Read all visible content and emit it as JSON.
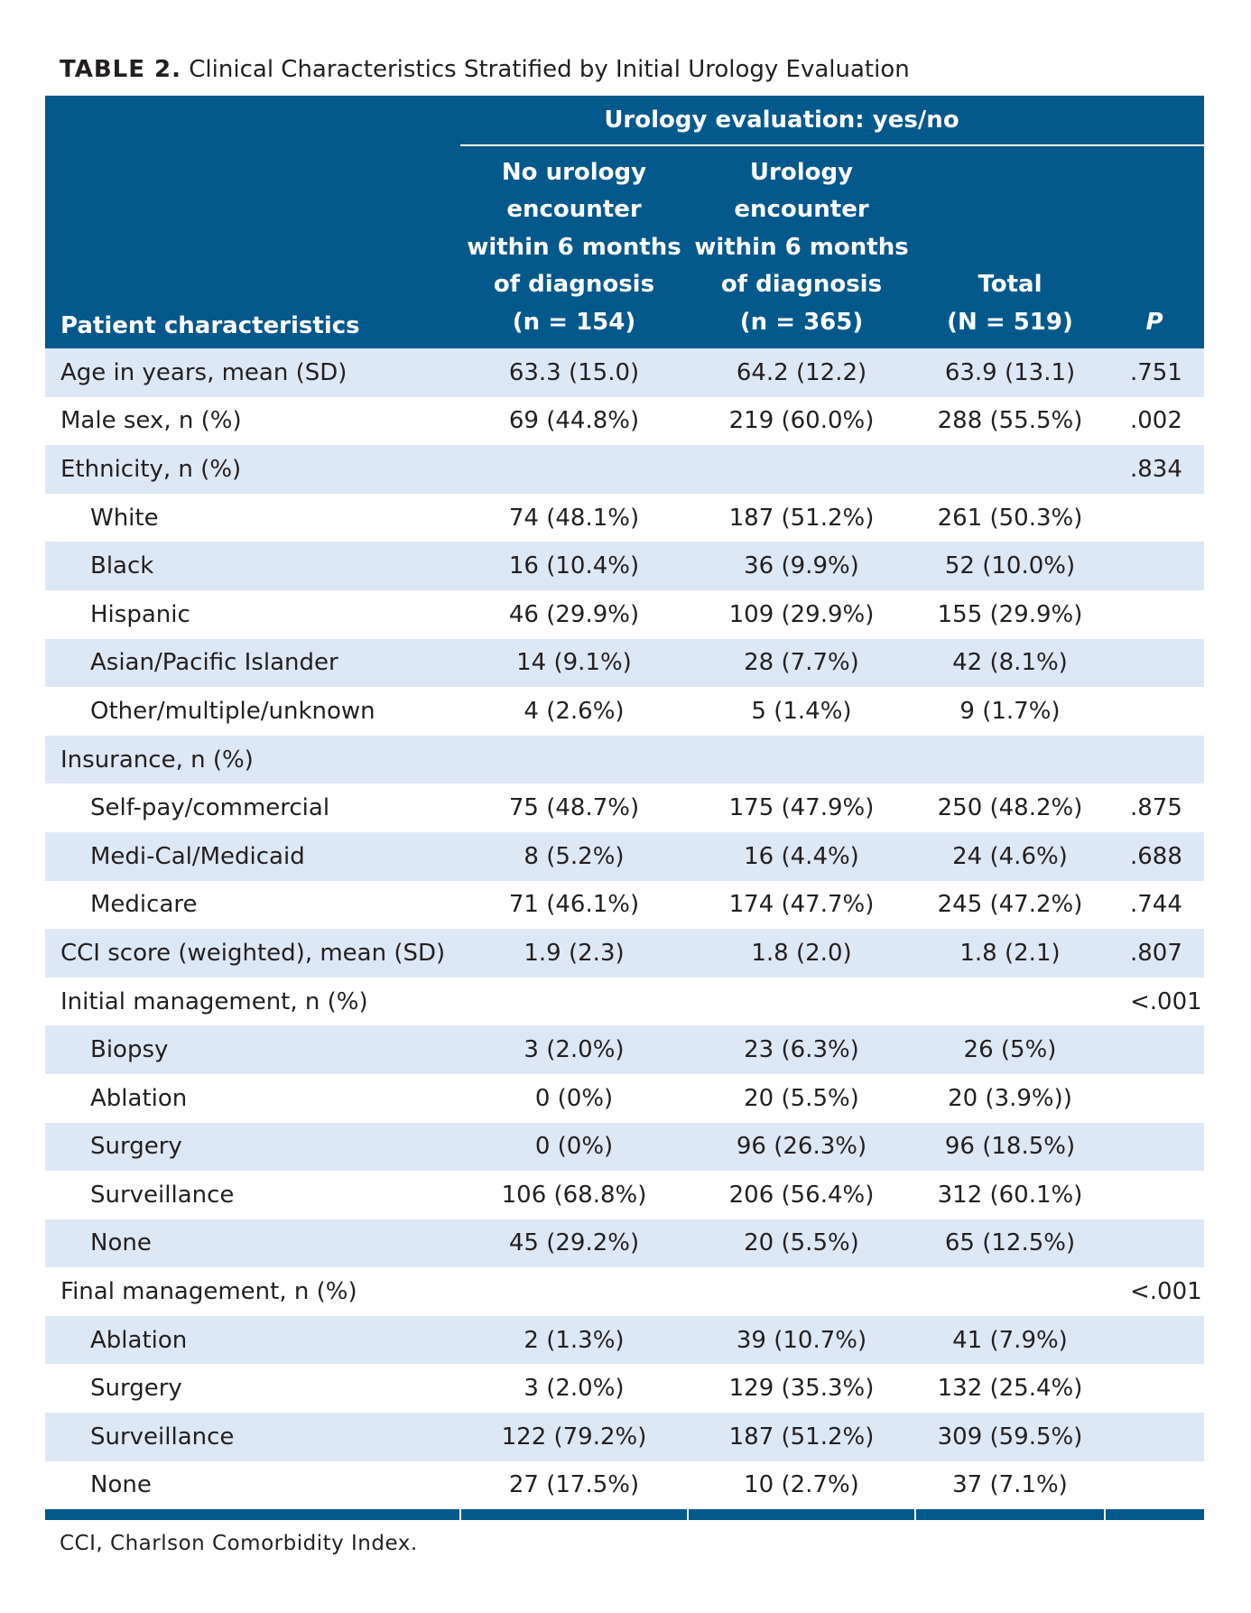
{
  "caption": {
    "label": "TABLE 2.",
    "text": "Clinical Characteristics Stratified by Initial Urology Evaluation"
  },
  "header": {
    "group_label": "Urology evaluation: yes/no",
    "row_header": "Patient characteristics",
    "columns": [
      [
        "No urology",
        "encounter",
        "within 6 months",
        "of diagnosis",
        "(n = 154)"
      ],
      [
        "Urology",
        "encounter",
        "within 6 months",
        "of diagnosis",
        "(n = 365)"
      ],
      [
        "Total",
        "(N = 519)"
      ]
    ],
    "p_label": "P"
  },
  "rows": [
    {
      "label": "Age in years, mean (SD)",
      "indent": false,
      "no": "63.3 (15.0)",
      "yes": "64.2 (12.2)",
      "total": "63.9 (13.1)",
      "p": ".751"
    },
    {
      "label": "Male sex, n (%)",
      "indent": false,
      "no": "69 (44.8%)",
      "yes": "219 (60.0%)",
      "total": "288 (55.5%)",
      "p": ".002"
    },
    {
      "label": "Ethnicity, n (%)",
      "indent": false,
      "no": "",
      "yes": "",
      "total": "",
      "p": ".834"
    },
    {
      "label": "White",
      "indent": true,
      "no": "74 (48.1%)",
      "yes": "187 (51.2%)",
      "total": "261 (50.3%)",
      "p": ""
    },
    {
      "label": "Black",
      "indent": true,
      "no": "16 (10.4%)",
      "yes": "36 (9.9%)",
      "total": "52 (10.0%)",
      "p": ""
    },
    {
      "label": "Hispanic",
      "indent": true,
      "no": "46 (29.9%)",
      "yes": "109 (29.9%)",
      "total": "155 (29.9%)",
      "p": ""
    },
    {
      "label": "Asian/Pacific Islander",
      "indent": true,
      "no": "14 (9.1%)",
      "yes": "28 (7.7%)",
      "total": "42 (8.1%)",
      "p": ""
    },
    {
      "label": "Other/multiple/unknown",
      "indent": true,
      "no": "4 (2.6%)",
      "yes": "5 (1.4%)",
      "total": "9 (1.7%)",
      "p": ""
    },
    {
      "label": "Insurance, n (%)",
      "indent": false,
      "no": "",
      "yes": "",
      "total": "",
      "p": ""
    },
    {
      "label": "Self-pay/commercial",
      "indent": true,
      "no": "75 (48.7%)",
      "yes": "175 (47.9%)",
      "total": "250 (48.2%)",
      "p": ".875"
    },
    {
      "label": "Medi-Cal/Medicaid",
      "indent": true,
      "no": "8 (5.2%)",
      "yes": "16 (4.4%)",
      "total": "24 (4.6%)",
      "p": ".688"
    },
    {
      "label": "Medicare",
      "indent": true,
      "no": "71 (46.1%)",
      "yes": "174 (47.7%)",
      "total": "245 (47.2%)",
      "p": ".744"
    },
    {
      "label": "CCI score (weighted), mean (SD)",
      "indent": false,
      "no": "1.9 (2.3)",
      "yes": "1.8 (2.0)",
      "total": "1.8 (2.1)",
      "p": ".807"
    },
    {
      "label": "Initial management, n (%)",
      "indent": false,
      "no": "",
      "yes": "",
      "total": "",
      "p": "<.001"
    },
    {
      "label": "Biopsy",
      "indent": true,
      "no": "3 (2.0%)",
      "yes": "23 (6.3%)",
      "total": "26 (5%)",
      "p": ""
    },
    {
      "label": "Ablation",
      "indent": true,
      "no": "0 (0%)",
      "yes": "20 (5.5%)",
      "total": "20 (3.9%))",
      "p": ""
    },
    {
      "label": "Surgery",
      "indent": true,
      "no": "0 (0%)",
      "yes": "96 (26.3%)",
      "total": "96 (18.5%)",
      "p": ""
    },
    {
      "label": "Surveillance",
      "indent": true,
      "no": "106 (68.8%)",
      "yes": "206 (56.4%)",
      "total": "312 (60.1%)",
      "p": ""
    },
    {
      "label": "None",
      "indent": true,
      "no": "45 (29.2%)",
      "yes": "20 (5.5%)",
      "total": "65 (12.5%)",
      "p": ""
    },
    {
      "label": "Final management, n (%)",
      "indent": false,
      "no": "",
      "yes": "",
      "total": "",
      "p": "<.001"
    },
    {
      "label": "Ablation",
      "indent": true,
      "no": "2 (1.3%)",
      "yes": "39 (10.7%)",
      "total": "41 (7.9%)",
      "p": ""
    },
    {
      "label": "Surgery",
      "indent": true,
      "no": "3 (2.0%)",
      "yes": "129 (35.3%)",
      "total": "132 (25.4%)",
      "p": ""
    },
    {
      "label": "Surveillance",
      "indent": true,
      "no": "122 (79.2%)",
      "yes": "187 (51.2%)",
      "total": "309 (59.5%)",
      "p": ""
    },
    {
      "label": "None",
      "indent": true,
      "no": "27 (17.5%)",
      "yes": "10 (2.7%)",
      "total": "37 (7.1%)",
      "p": ""
    }
  ],
  "footnote": "CCI, Charlson Comorbidity Index.",
  "colors": {
    "header_bg": "#03588c",
    "stripe": "#dde8f6",
    "text": "#231f20"
  }
}
